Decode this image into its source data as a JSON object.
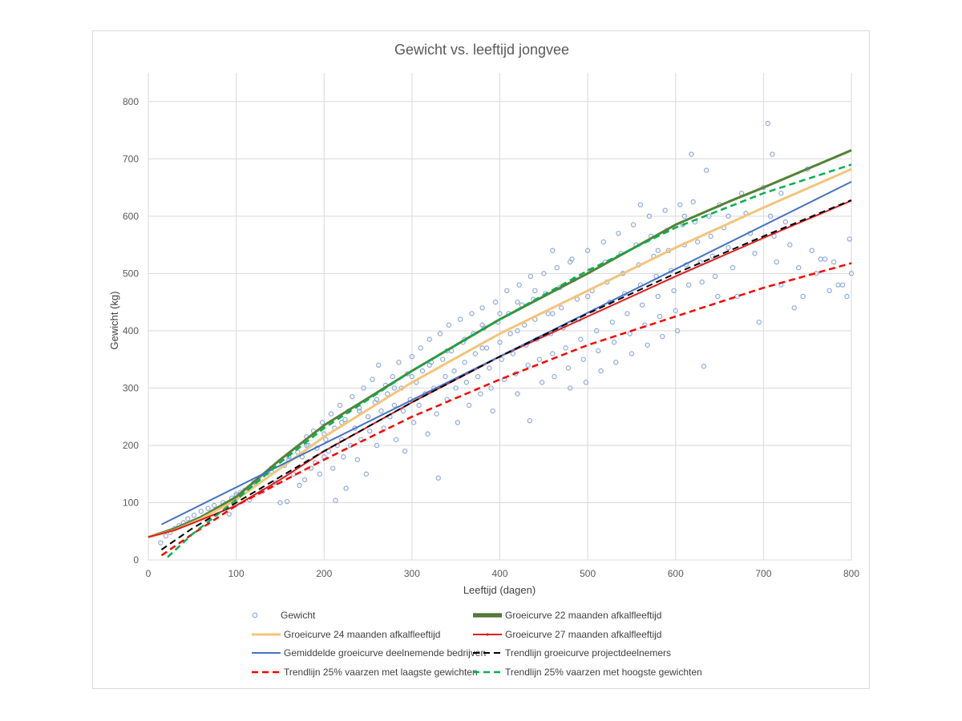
{
  "chart_data": {
    "type": "scatter",
    "title": "Gewicht vs. leeftijd jongvee",
    "xlabel": "Leeftijd (dagen)",
    "ylabel": "Gewicht (kg)",
    "xlim": [
      0,
      800
    ],
    "ylim": [
      0,
      850
    ],
    "xticks": [
      0,
      100,
      200,
      300,
      400,
      500,
      600,
      700,
      800
    ],
    "yticks": [
      0,
      100,
      200,
      300,
      400,
      500,
      600,
      700,
      800
    ],
    "grid": true,
    "legend_position": "bottom",
    "scatter": {
      "name": "Gewicht",
      "color": "#8faadc",
      "points": [
        [
          14,
          30
        ],
        [
          20,
          42
        ],
        [
          25,
          48
        ],
        [
          30,
          55
        ],
        [
          35,
          60
        ],
        [
          40,
          65
        ],
        [
          45,
          72
        ],
        [
          52,
          78
        ],
        [
          60,
          85
        ],
        [
          68,
          90
        ],
        [
          75,
          95
        ],
        [
          85,
          100
        ],
        [
          92,
          80
        ],
        [
          95,
          108
        ],
        [
          100,
          112
        ],
        [
          105,
          118
        ],
        [
          110,
          122
        ],
        [
          115,
          105
        ],
        [
          120,
          130
        ],
        [
          125,
          140
        ],
        [
          130,
          120
        ],
        [
          135,
          152
        ],
        [
          140,
          160
        ],
        [
          145,
          135
        ],
        [
          150,
          100
        ],
        [
          155,
          165
        ],
        [
          158,
          102
        ],
        [
          160,
          175
        ],
        [
          165,
          150
        ],
        [
          170,
          188
        ],
        [
          172,
          130
        ],
        [
          175,
          180
        ],
        [
          178,
          140
        ],
        [
          180,
          215
        ],
        [
          182,
          200
        ],
        [
          185,
          160
        ],
        [
          188,
          225
        ],
        [
          190,
          170
        ],
        [
          192,
          195
        ],
        [
          195,
          150
        ],
        [
          198,
          240
        ],
        [
          200,
          180
        ],
        [
          202,
          210
        ],
        [
          205,
          190
        ],
        [
          208,
          255
        ],
        [
          210,
          160
        ],
        [
          212,
          230
        ],
        [
          213,
          104
        ],
        [
          215,
          200
        ],
        [
          218,
          270
        ],
        [
          220,
          210
        ],
        [
          222,
          180
        ],
        [
          224,
          245
        ],
        [
          225,
          125
        ],
        [
          228,
          260
        ],
        [
          230,
          200
        ],
        [
          232,
          285
        ],
        [
          235,
          230
        ],
        [
          238,
          175
        ],
        [
          240,
          265
        ],
        [
          242,
          210
        ],
        [
          245,
          300
        ],
        [
          248,
          150
        ],
        [
          250,
          250
        ],
        [
          252,
          225
        ],
        [
          255,
          315
        ],
        [
          258,
          275
        ],
        [
          260,
          200
        ],
        [
          262,
          340
        ],
        [
          265,
          260
        ],
        [
          268,
          230
        ],
        [
          270,
          305
        ],
        [
          272,
          290
        ],
        [
          275,
          250
        ],
        [
          278,
          320
        ],
        [
          280,
          270
        ],
        [
          282,
          210
        ],
        [
          285,
          345
        ],
        [
          288,
          300
        ],
        [
          290,
          260
        ],
        [
          292,
          190
        ],
        [
          295,
          325
        ],
        [
          298,
          280
        ],
        [
          300,
          355
        ],
        [
          302,
          240
        ],
        [
          305,
          310
        ],
        [
          308,
          270
        ],
        [
          310,
          370
        ],
        [
          312,
          330
        ],
        [
          315,
          290
        ],
        [
          318,
          220
        ],
        [
          320,
          385
        ],
        [
          322,
          345
        ],
        [
          325,
          300
        ],
        [
          328,
          255
        ],
        [
          330,
          143
        ],
        [
          332,
          395
        ],
        [
          335,
          350
        ],
        [
          338,
          320
        ],
        [
          340,
          280
        ],
        [
          342,
          410
        ],
        [
          345,
          365
        ],
        [
          348,
          330
        ],
        [
          350,
          300
        ],
        [
          352,
          240
        ],
        [
          355,
          420
        ],
        [
          358,
          380
        ],
        [
          360,
          345
        ],
        [
          362,
          310
        ],
        [
          365,
          270
        ],
        [
          368,
          430
        ],
        [
          370,
          395
        ],
        [
          372,
          360
        ],
        [
          375,
          320
        ],
        [
          378,
          290
        ],
        [
          380,
          440
        ],
        [
          382,
          405
        ],
        [
          385,
          370
        ],
        [
          388,
          335
        ],
        [
          390,
          300
        ],
        [
          392,
          260
        ],
        [
          395,
          450
        ],
        [
          398,
          415
        ],
        [
          400,
          380
        ],
        [
          402,
          350
        ],
        [
          405,
          315
        ],
        [
          408,
          470
        ],
        [
          410,
          430
        ],
        [
          412,
          395
        ],
        [
          415,
          360
        ],
        [
          418,
          325
        ],
        [
          420,
          290
        ],
        [
          422,
          480
        ],
        [
          425,
          445
        ],
        [
          428,
          410
        ],
        [
          430,
          375
        ],
        [
          432,
          340
        ],
        [
          434,
          243
        ],
        [
          435,
          495
        ],
        [
          438,
          455
        ],
        [
          440,
          420
        ],
        [
          442,
          385
        ],
        [
          445,
          350
        ],
        [
          448,
          310
        ],
        [
          450,
          500
        ],
        [
          452,
          465
        ],
        [
          455,
          430
        ],
        [
          458,
          395
        ],
        [
          460,
          360
        ],
        [
          462,
          320
        ],
        [
          465,
          510
        ],
        [
          468,
          475
        ],
        [
          470,
          440
        ],
        [
          472,
          405
        ],
        [
          475,
          370
        ],
        [
          478,
          335
        ],
        [
          480,
          300
        ],
        [
          482,
          525
        ],
        [
          485,
          490
        ],
        [
          488,
          455
        ],
        [
          490,
          420
        ],
        [
          492,
          385
        ],
        [
          495,
          350
        ],
        [
          498,
          310
        ],
        [
          500,
          540
        ],
        [
          502,
          505
        ],
        [
          505,
          470
        ],
        [
          508,
          435
        ],
        [
          510,
          400
        ],
        [
          512,
          365
        ],
        [
          515,
          330
        ],
        [
          518,
          555
        ],
        [
          520,
          520
        ],
        [
          522,
          485
        ],
        [
          525,
          450
        ],
        [
          528,
          415
        ],
        [
          530,
          380
        ],
        [
          532,
          345
        ],
        [
          535,
          570
        ],
        [
          538,
          535
        ],
        [
          540,
          500
        ],
        [
          542,
          465
        ],
        [
          545,
          430
        ],
        [
          548,
          395
        ],
        [
          550,
          360
        ],
        [
          552,
          585
        ],
        [
          555,
          550
        ],
        [
          558,
          515
        ],
        [
          560,
          480
        ],
        [
          562,
          445
        ],
        [
          565,
          410
        ],
        [
          568,
          375
        ],
        [
          570,
          600
        ],
        [
          572,
          565
        ],
        [
          575,
          530
        ],
        [
          578,
          495
        ],
        [
          580,
          460
        ],
        [
          582,
          425
        ],
        [
          585,
          390
        ],
        [
          588,
          610
        ],
        [
          590,
          575
        ],
        [
          592,
          540
        ],
        [
          595,
          505
        ],
        [
          598,
          470
        ],
        [
          600,
          435
        ],
        [
          602,
          400
        ],
        [
          605,
          620
        ],
        [
          608,
          585
        ],
        [
          610,
          550
        ],
        [
          612,
          515
        ],
        [
          615,
          480
        ],
        [
          618,
          708
        ],
        [
          620,
          625
        ],
        [
          622,
          590
        ],
        [
          625,
          555
        ],
        [
          628,
          520
        ],
        [
          630,
          485
        ],
        [
          632,
          338
        ],
        [
          635,
          680
        ],
        [
          638,
          600
        ],
        [
          640,
          565
        ],
        [
          642,
          530
        ],
        [
          645,
          495
        ],
        [
          648,
          460
        ],
        [
          650,
          620
        ],
        [
          655,
          580
        ],
        [
          660,
          545
        ],
        [
          665,
          510
        ],
        [
          670,
          460
        ],
        [
          675,
          640
        ],
        [
          680,
          605
        ],
        [
          685,
          570
        ],
        [
          690,
          535
        ],
        [
          695,
          415
        ],
        [
          700,
          650
        ],
        [
          705,
          762
        ],
        [
          708,
          600
        ],
        [
          710,
          708
        ],
        [
          712,
          565
        ],
        [
          715,
          520
        ],
        [
          720,
          480
        ],
        [
          725,
          590
        ],
        [
          730,
          550
        ],
        [
          735,
          440
        ],
        [
          740,
          510
        ],
        [
          745,
          460
        ],
        [
          750,
          682
        ],
        [
          755,
          540
        ],
        [
          760,
          500
        ],
        [
          765,
          525
        ],
        [
          770,
          525
        ],
        [
          775,
          470
        ],
        [
          780,
          520
        ],
        [
          785,
          480
        ],
        [
          790,
          480
        ],
        [
          795,
          460
        ],
        [
          800,
          500
        ],
        [
          798,
          560
        ],
        [
          720,
          640
        ],
        [
          660,
          600
        ],
        [
          610,
          600
        ],
        [
          560,
          620
        ],
        [
          480,
          520
        ],
        [
          460,
          540
        ],
        [
          440,
          470
        ],
        [
          420,
          450
        ],
        [
          400,
          430
        ],
        [
          380,
          410
        ],
        [
          360,
          385
        ],
        [
          340,
          365
        ],
        [
          320,
          340
        ],
        [
          300,
          320
        ],
        [
          280,
          300
        ],
        [
          260,
          280
        ],
        [
          240,
          260
        ],
        [
          220,
          240
        ],
        [
          200,
          220
        ],
        [
          180,
          200
        ],
        [
          160,
          180
        ],
        [
          140,
          155
        ],
        [
          120,
          135
        ],
        [
          100,
          115
        ],
        [
          580,
          540
        ],
        [
          540,
          500
        ],
        [
          500,
          460
        ],
        [
          460,
          430
        ],
        [
          420,
          400
        ],
        [
          380,
          370
        ]
      ]
    },
    "series": [
      {
        "name": "Groeicurve 22 maanden afkalfleeftijd",
        "color": "#548235",
        "style": "solid",
        "width": 3,
        "x": [
          0,
          30,
          60,
          100,
          150,
          200,
          300,
          400,
          500,
          600,
          660,
          700,
          800
        ],
        "y": [
          40,
          55,
          75,
          110,
          175,
          235,
          330,
          420,
          500,
          585,
          625,
          650,
          715
        ]
      },
      {
        "name": "Groeicurve 24 maanden afkalfleeftijd",
        "color": "#f4c47a",
        "style": "solid",
        "width": 3,
        "x": [
          0,
          30,
          60,
          100,
          150,
          200,
          300,
          400,
          500,
          600,
          700,
          800
        ],
        "y": [
          40,
          52,
          72,
          105,
          160,
          215,
          310,
          395,
          470,
          545,
          615,
          682
        ]
      },
      {
        "name": "Groeicurve 27 maanden afkalfleeftijd",
        "color": "#e41a1c",
        "style": "solid",
        "width": 2,
        "x": [
          0,
          30,
          60,
          100,
          150,
          200,
          300,
          400,
          500,
          600,
          700,
          800
        ],
        "y": [
          40,
          52,
          70,
          95,
          140,
          190,
          275,
          355,
          425,
          495,
          562,
          627
        ]
      },
      {
        "name": "Gemiddelde groeicurve deelnemende bedrijven",
        "color": "#4472c4",
        "style": "solid",
        "width": 2,
        "x": [
          15,
          800
        ],
        "y": [
          62,
          660
        ]
      },
      {
        "name": "Trendlijn groeicurve projectdeelnemers",
        "color": "#000000",
        "style": "dashed",
        "width": 2,
        "x": [
          15,
          50,
          100,
          150,
          200,
          300,
          400,
          500,
          600,
          700,
          800
        ],
        "y": [
          18,
          55,
          100,
          145,
          190,
          275,
          355,
          430,
          500,
          565,
          628
        ]
      },
      {
        "name": "Trendlijn 25% vaarzen met laagste gewichten",
        "color": "#ff0000",
        "style": "dashed",
        "width": 2.5,
        "x": [
          15,
          50,
          100,
          150,
          200,
          300,
          400,
          500,
          600,
          700,
          800
        ],
        "y": [
          8,
          45,
          95,
          135,
          175,
          250,
          315,
          375,
          425,
          475,
          518
        ]
      },
      {
        "name": "Trendlijn 25% vaarzen met hoogste gewichten",
        "color": "#00b050",
        "style": "dashed",
        "width": 2.5,
        "x": [
          22,
          50,
          100,
          150,
          200,
          300,
          400,
          500,
          600,
          700,
          800
        ],
        "y": [
          5,
          45,
          105,
          170,
          230,
          330,
          420,
          505,
          580,
          640,
          690
        ]
      }
    ]
  }
}
